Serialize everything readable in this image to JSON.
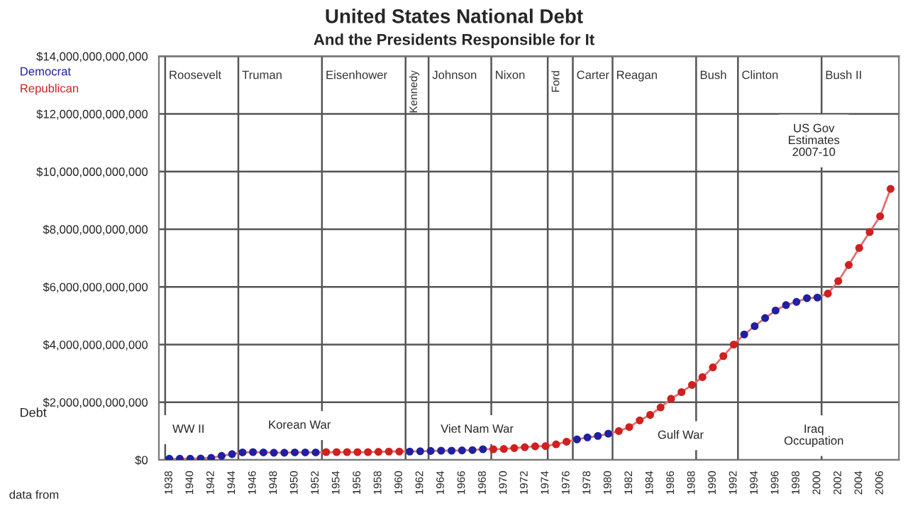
{
  "chart_data": {
    "type": "line",
    "title": "United States National Debt",
    "subtitle": "And the Presidents Responsible for It",
    "ylabel": "Debt",
    "x": [
      1938,
      1939,
      1940,
      1941,
      1942,
      1943,
      1944,
      1945,
      1946,
      1947,
      1948,
      1949,
      1950,
      1951,
      1952,
      1953,
      1954,
      1955,
      1956,
      1957,
      1958,
      1959,
      1960,
      1961,
      1962,
      1963,
      1964,
      1965,
      1966,
      1967,
      1968,
      1969,
      1970,
      1971,
      1972,
      1973,
      1974,
      1975,
      1976,
      1977,
      1978,
      1979,
      1980,
      1981,
      1982,
      1983,
      1984,
      1985,
      1986,
      1987,
      1988,
      1989,
      1990,
      1991,
      1992,
      1993,
      1994,
      1995,
      1996,
      1997,
      1998,
      1999,
      2000,
      2001,
      2002,
      2003,
      2004,
      2005,
      2006,
      2007
    ],
    "series": [
      {
        "color": "#e07070",
        "marker": "none",
        "values": [
          40000000000.0,
          40000000000.0,
          40000000000.0,
          50000000000.0,
          70000000000.0,
          140000000000.0,
          200000000000.0,
          260000000000.0,
          270000000000.0,
          260000000000.0,
          250000000000.0,
          250000000000.0,
          260000000000.0,
          260000000000.0,
          260000000000.0,
          270000000000.0,
          270000000000.0,
          270000000000.0,
          270000000000.0,
          270000000000.0,
          280000000000.0,
          290000000000.0,
          290000000000.0,
          290000000000.0,
          300000000000.0,
          310000000000.0,
          320000000000.0,
          320000000000.0,
          330000000000.0,
          340000000000.0,
          370000000000.0,
          370000000000.0,
          380000000000.0,
          410000000000.0,
          440000000000.0,
          470000000000.0,
          480000000000.0,
          540000000000.0,
          630000000000.0,
          710000000000.0,
          780000000000.0,
          830000000000.0,
          910000000000.0,
          1000000000000.0,
          1140000000000.0,
          1370000000000.0,
          1560000000000.0,
          1820000000000.0,
          2120000000000.0,
          2350000000000.0,
          2600000000000.0,
          2870000000000.0,
          3210000000000.0,
          3600000000000.0,
          4000000000000.0,
          4350000000000.0,
          4640000000000.0,
          4920000000000.0,
          5180000000000.0,
          5370000000000.0,
          5480000000000.0,
          5610000000000.0,
          5630000000000.0,
          5770000000000.0,
          6200000000000.0,
          6760000000000.0,
          7350000000000.0,
          7900000000000.0,
          8450000000000.0,
          9400000000000.0
        ]
      },
      {
        "type": "scatter",
        "name": "Democrat",
        "color": "#2020a0",
        "marker": "circle",
        "values": [
          40000000000.0,
          40000000000.0,
          40000000000.0,
          50000000000.0,
          70000000000.0,
          140000000000.0,
          200000000000.0,
          260000000000.0,
          270000000000.0,
          260000000000.0,
          250000000000.0,
          250000000000.0,
          260000000000.0,
          260000000000.0,
          260000000000.0,
          null,
          null,
          null,
          null,
          null,
          null,
          null,
          null,
          290000000000.0,
          300000000000.0,
          310000000000.0,
          320000000000.0,
          320000000000.0,
          330000000000.0,
          340000000000.0,
          370000000000.0,
          null,
          null,
          null,
          null,
          null,
          null,
          null,
          null,
          710000000000.0,
          780000000000.0,
          830000000000.0,
          910000000000.0,
          null,
          null,
          null,
          null,
          null,
          null,
          null,
          null,
          null,
          null,
          null,
          null,
          4350000000000.0,
          4640000000000.0,
          4920000000000.0,
          5180000000000.0,
          5370000000000.0,
          5480000000000.0,
          5610000000000.0,
          5630000000000.0,
          null,
          null,
          null,
          null,
          null,
          null,
          null
        ]
      },
      {
        "type": "scatter",
        "name": "Republican",
        "color": "#d02020",
        "marker": "circle",
        "values": [
          null,
          null,
          null,
          null,
          null,
          null,
          null,
          null,
          null,
          null,
          null,
          null,
          null,
          null,
          null,
          270000000000.0,
          270000000000.0,
          270000000000.0,
          270000000000.0,
          270000000000.0,
          280000000000.0,
          290000000000.0,
          290000000000.0,
          null,
          null,
          null,
          null,
          null,
          null,
          null,
          null,
          370000000000.0,
          380000000000.0,
          410000000000.0,
          440000000000.0,
          470000000000.0,
          480000000000.0,
          540000000000.0,
          630000000000.0,
          null,
          null,
          null,
          null,
          1000000000000.0,
          1140000000000.0,
          1370000000000.0,
          1560000000000.0,
          1820000000000.0,
          2120000000000.0,
          2350000000000.0,
          2600000000000.0,
          2870000000000.0,
          3210000000000.0,
          3600000000000.0,
          4000000000000.0,
          null,
          null,
          null,
          null,
          null,
          null,
          null,
          null,
          5770000000000.0,
          6200000000000.0,
          6760000000000.0,
          7350000000000.0,
          7900000000000.0,
          8450000000000.0,
          9400000000000.0
        ]
      }
    ],
    "xlim": [
      1937.0,
      2007.8
    ],
    "xticks": [
      1938,
      1940,
      1942,
      1944,
      1946,
      1948,
      1950,
      1952,
      1954,
      1956,
      1958,
      1960,
      1962,
      1964,
      1966,
      1968,
      1970,
      1972,
      1974,
      1976,
      1978,
      1980,
      1982,
      1984,
      1986,
      1988,
      1990,
      1992,
      1994,
      1996,
      1998,
      2000,
      2002,
      2004,
      2006
    ],
    "ylim": [
      0,
      14000000000000.0
    ],
    "yticks": [
      {
        "value": 0,
        "label": "$0"
      },
      {
        "value": 2000000000000.0,
        "label": "$2,000,000,000,000"
      },
      {
        "value": 4000000000000.0,
        "label": "$4,000,000,000,000"
      },
      {
        "value": 6000000000000.0,
        "label": "$6,000,000,000,000"
      },
      {
        "value": 8000000000000.0,
        "label": "$8,000,000,000,000"
      },
      {
        "value": 10000000000000.0,
        "label": "$10,000,000,000,000"
      },
      {
        "value": 12000000000000.0,
        "label": "$12,000,000,000,000"
      },
      {
        "value": 14000000000000.0,
        "label": "$14,000,000,000,000"
      }
    ],
    "grid": "y",
    "legend": "top left",
    "ref_lines": [
      {
        "axis": "x",
        "value": 1937.6,
        "label": "Roosevelt",
        "color": "#555555"
      },
      {
        "axis": "x",
        "value": 1944.6,
        "label": "Truman",
        "color": "#555555"
      },
      {
        "axis": "x",
        "value": 1952.6,
        "label": "Eisenhower",
        "color": "#555555"
      },
      {
        "axis": "x",
        "value": 1960.6,
        "label": "Kennedy",
        "color": "#555555"
      },
      {
        "axis": "x",
        "value": 1962.8,
        "label": "Johnson",
        "color": "#555555"
      },
      {
        "axis": "x",
        "value": 1968.8,
        "label": "Nixon",
        "color": "#555555"
      },
      {
        "axis": "x",
        "value": 1974.2,
        "label": "Ford",
        "color": "#555555"
      },
      {
        "axis": "x",
        "value": 1976.6,
        "label": "Carter",
        "color": "#555555"
      },
      {
        "axis": "x",
        "value": 1980.4,
        "label": "Reagan",
        "color": "#555555"
      },
      {
        "axis": "x",
        "value": 1988.4,
        "label": "Bush",
        "color": "#555555"
      },
      {
        "axis": "x",
        "value": 1992.4,
        "label": "Clinton",
        "color": "#555555"
      },
      {
        "axis": "x",
        "value": 2000.4,
        "label": "Bush II",
        "color": "#555555"
      }
    ],
    "annotations": [
      "WW II",
      "Korean War",
      "Viet Nam War",
      "Gulf War",
      "Iraq\nOccupation",
      "US Gov\nEstimates\n2007-10",
      "data from"
    ]
  }
}
